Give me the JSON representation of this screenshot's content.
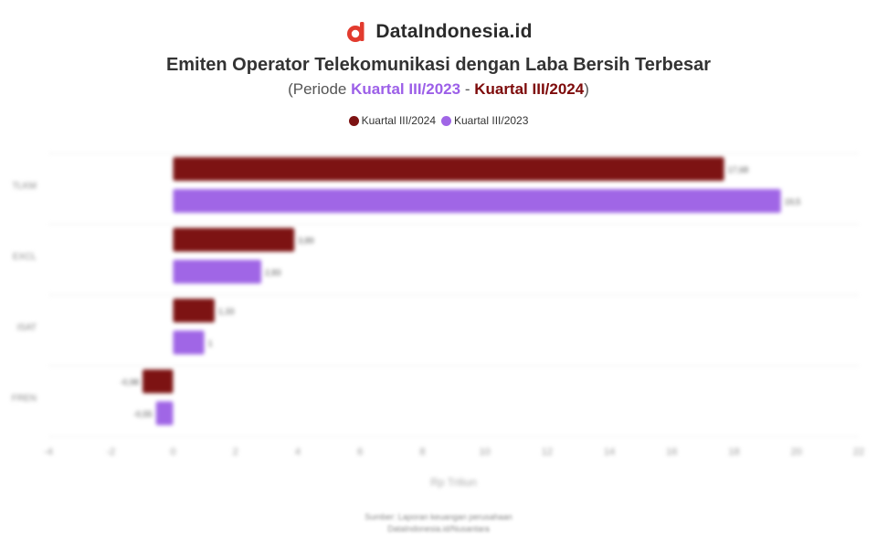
{
  "brand": {
    "name": "DataIndonesia.id",
    "logo_icon": "dataindonesia-logo-icon"
  },
  "header": {
    "title": "Emiten Operator Telekomunikasi dengan Laba Bersih Terbesar",
    "subtitle_prefix": "(Periode ",
    "subtitle_period_a": "Kuartal III/2023",
    "subtitle_sep": " - ",
    "subtitle_period_b": "Kuartal III/2024",
    "subtitle_suffix": ")"
  },
  "colors": {
    "series_2024": "#7d1313",
    "series_2023": "#a066e6",
    "grid": "#eeeeee"
  },
  "chart_data": {
    "type": "bar",
    "orientation": "horizontal",
    "categories": [
      "TLKM",
      "EXCL",
      "ISAT",
      "FREN"
    ],
    "series": [
      {
        "name": "Kuartal III/2024",
        "values": [
          17.68,
          3.89,
          1.33,
          -0.98
        ]
      },
      {
        "name": "Kuartal III/2023",
        "values": [
          19.5,
          2.83,
          1.0,
          -0.55
        ]
      }
    ],
    "value_labels": [
      [
        "17,68",
        "3,89",
        "1,33",
        "-0,98"
      ],
      [
        "19,5",
        "2,83",
        "1",
        "-0,55"
      ]
    ],
    "xlim": [
      -4,
      22
    ],
    "xticks": [
      -4,
      -2,
      0,
      2,
      4,
      6,
      8,
      10,
      12,
      14,
      16,
      18,
      20,
      22
    ],
    "xlabel": "Rp Triliun",
    "legend_position": "top-center",
    "grid": true
  },
  "footer": {
    "line1": "Sumber: Laporan keuangan perusahaan",
    "line2": "DataIndonesia.id/Nusantara"
  }
}
